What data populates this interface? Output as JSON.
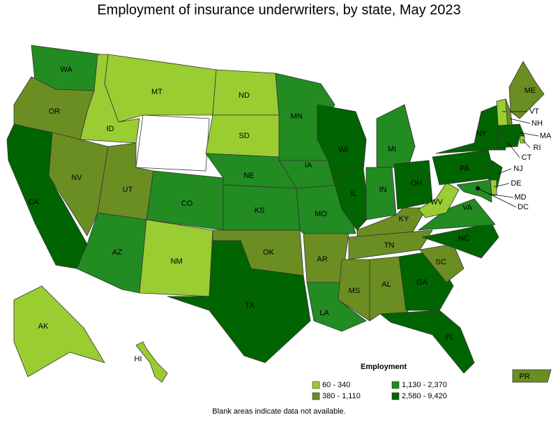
{
  "title": "Employment of insurance underwriters, by state, May 2023",
  "legend": {
    "title": "Employment",
    "items": [
      {
        "label": "60 - 340",
        "color": "#9acd32"
      },
      {
        "label": "380 - 1,110",
        "color": "#6b8e23"
      },
      {
        "label": "1,130 - 2,370",
        "color": "#228b22"
      },
      {
        "label": "2,580 - 9,420",
        "color": "#006400"
      }
    ]
  },
  "states": [
    {
      "label": "WA",
      "class": 2
    },
    {
      "label": "OR",
      "class": 1
    },
    {
      "label": "CA",
      "class": 3
    },
    {
      "label": "NV",
      "class": 1
    },
    {
      "label": "ID",
      "class": 0
    },
    {
      "label": "MT",
      "class": 0
    },
    {
      "label": "UT",
      "class": 1
    },
    {
      "label": "AZ",
      "class": 2
    },
    {
      "label": "CO",
      "class": 2
    },
    {
      "label": "NM",
      "class": 0
    },
    {
      "label": "ND",
      "class": 0
    },
    {
      "label": "SD",
      "class": 0
    },
    {
      "label": "NE",
      "class": 2
    },
    {
      "label": "KS",
      "class": 2
    },
    {
      "label": "OK",
      "class": 1
    },
    {
      "label": "TX",
      "class": 3
    },
    {
      "label": "MN",
      "class": 2
    },
    {
      "label": "IA",
      "class": 2
    },
    {
      "label": "MO",
      "class": 2
    },
    {
      "label": "AR",
      "class": 1
    },
    {
      "label": "LA",
      "class": 2
    },
    {
      "label": "WI",
      "class": 3
    },
    {
      "label": "IL",
      "class": 3
    },
    {
      "label": "MI",
      "class": 2
    },
    {
      "label": "IN",
      "class": 2
    },
    {
      "label": "OH",
      "class": 3
    },
    {
      "label": "KY",
      "class": 1
    },
    {
      "label": "TN",
      "class": 1
    },
    {
      "label": "MS",
      "class": 1
    },
    {
      "label": "AL",
      "class": 1
    },
    {
      "label": "GA",
      "class": 3
    },
    {
      "label": "FL",
      "class": 3
    },
    {
      "label": "SC",
      "class": 1
    },
    {
      "label": "NC",
      "class": 3
    },
    {
      "label": "VA",
      "class": 2
    },
    {
      "label": "WV",
      "class": 0
    },
    {
      "label": "PA",
      "class": 3
    },
    {
      "label": "NY",
      "class": 3
    },
    {
      "label": "ME",
      "class": 1
    },
    {
      "label": "AK",
      "class": 0
    },
    {
      "label": "HI",
      "class": 0
    },
    {
      "label": "PR",
      "class": 1
    },
    {
      "label": "NJ",
      "class": 3
    },
    {
      "label": "VT",
      "class": 0
    },
    {
      "label": "NH",
      "class": 1
    },
    {
      "label": "MA",
      "class": 3
    },
    {
      "label": "RI",
      "class": 0
    },
    {
      "label": "CT",
      "class": 3
    },
    {
      "label": "DE",
      "class": 0
    },
    {
      "label": "MD",
      "class": 2
    },
    {
      "label": "DC",
      "class": 3
    }
  ],
  "footnote": "Blank areas indicate data not available."
}
